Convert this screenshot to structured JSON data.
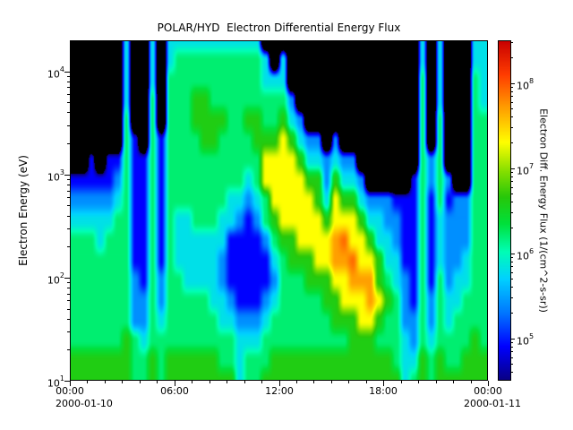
{
  "title": "POLAR/HYD  Electron Differential Energy Flux",
  "chart_data": {
    "type": "heatmap",
    "title": "POLAR/HYD  Electron Differential Energy Flux",
    "ylabel": "Electron Energy (eV)",
    "colorbar_label": "Electron Diff. Energy Flux (1/(cm^2-s-sr))",
    "x_date_left": "2000-01-10",
    "x_date_right": "2000-01-11",
    "x_tick_hours": [
      0,
      6,
      12,
      18,
      24
    ],
    "x_tick_labels": [
      "00:00",
      "06:00",
      "12:00",
      "18:00",
      "00:00"
    ],
    "y_tick_exponents": [
      1,
      2,
      3,
      4
    ],
    "colorbar_tick_exponents": [
      5,
      6,
      7,
      8
    ],
    "x_hours_range": [
      0,
      24
    ],
    "y_log10_energy_range": [
      1.0,
      4.3
    ],
    "flux_log10_color_range": [
      4.5,
      8.5
    ],
    "no_data_below_log10_flux": 4.45,
    "time_bin_hours": 0.5,
    "energy_rows_log10_eV": [
      1.0,
      1.19,
      1.39,
      1.58,
      1.78,
      1.97,
      2.16,
      2.36,
      2.55,
      2.75,
      2.94,
      3.14,
      3.33,
      3.53,
      3.72,
      3.92,
      4.11,
      4.3
    ],
    "columns_log10_flux": [
      [
        6.6,
        6.6,
        6.2,
        6.2,
        6.2,
        6.2,
        6.2,
        6.2,
        5.8,
        5.4,
        4.9,
        3,
        3,
        3,
        3,
        3,
        3,
        3
      ],
      [
        6.6,
        6.6,
        6.2,
        6.2,
        6.2,
        6.2,
        6.2,
        6.2,
        5.8,
        5.4,
        4.9,
        3,
        3,
        3,
        3,
        3,
        3,
        3
      ],
      [
        6.6,
        6.6,
        6.2,
        6.2,
        6.2,
        6.2,
        6.2,
        6.2,
        5.8,
        5.4,
        4.9,
        4.9,
        3,
        3,
        3,
        3,
        3,
        3
      ],
      [
        6.6,
        6.6,
        6.2,
        6.2,
        6.2,
        6.2,
        6.2,
        5.8,
        5.8,
        5.4,
        4.9,
        3,
        3,
        3,
        3,
        3,
        3,
        3
      ],
      [
        6.6,
        6.6,
        6.2,
        6.2,
        6.2,
        6.2,
        6.2,
        6.2,
        5.8,
        5.4,
        4.9,
        4.9,
        3,
        3,
        3,
        3,
        3,
        3
      ],
      [
        6.6,
        6.6,
        6.2,
        6.2,
        6.2,
        6.2,
        6.2,
        6.2,
        6.2,
        5.8,
        5.4,
        4.9,
        3,
        3,
        3,
        3,
        3,
        3
      ],
      [
        6.6,
        6.6,
        6.6,
        6.2,
        6.2,
        6.2,
        6.2,
        6.2,
        6.2,
        6.2,
        6.2,
        6.2,
        6.2,
        6.2,
        5.8,
        5.8,
        5.8,
        5.8
      ],
      [
        6.2,
        6.2,
        6.2,
        5.4,
        5.4,
        5.4,
        4.9,
        4.9,
        4.9,
        4.9,
        4.9,
        4.9,
        4.9,
        3,
        3,
        3,
        3,
        3
      ],
      [
        6.2,
        6.2,
        5.8,
        5.4,
        5.4,
        4.9,
        4.9,
        4.9,
        4.9,
        4.9,
        4.9,
        4.9,
        3,
        3,
        3,
        3,
        3,
        3
      ],
      [
        6.6,
        6.6,
        6.2,
        6.2,
        6.2,
        6.2,
        6.2,
        6.2,
        6.2,
        6.2,
        6.2,
        6.2,
        6.2,
        6.2,
        6.2,
        5.8,
        5.8,
        5.8
      ],
      [
        6.2,
        6.2,
        6.2,
        5.8,
        5.4,
        5.4,
        4.9,
        4.9,
        4.9,
        4.9,
        4.9,
        4.9,
        4.9,
        3,
        3,
        3,
        3,
        3
      ],
      [
        6.6,
        6.6,
        6.2,
        6.2,
        6.2,
        6.2,
        6.2,
        6.2,
        6.2,
        6.2,
        6.2,
        6.2,
        6.2,
        6.2,
        6.2,
        6.2,
        5.8,
        5.8
      ],
      [
        6.6,
        6.6,
        6.2,
        6.2,
        6.2,
        6.2,
        5.8,
        5.8,
        5.8,
        6.2,
        6.2,
        6.2,
        6.2,
        6.2,
        6.2,
        6.2,
        6.2,
        5.8
      ],
      [
        6.6,
        6.6,
        6.2,
        6.2,
        6.2,
        5.8,
        5.8,
        5.8,
        5.8,
        6.2,
        6.2,
        6.2,
        6.2,
        6.2,
        6.2,
        6.2,
        6.2,
        5.8
      ],
      [
        6.6,
        6.6,
        6.2,
        6.2,
        6.2,
        5.8,
        5.8,
        5.8,
        6.2,
        6.2,
        6.2,
        6.2,
        6.2,
        6.6,
        6.6,
        6.2,
        6.2,
        5.8
      ],
      [
        6.6,
        6.6,
        6.2,
        6.2,
        6.2,
        5.8,
        5.8,
        5.8,
        6.2,
        6.2,
        6.2,
        6.2,
        6.6,
        6.6,
        6.6,
        6.2,
        6.2,
        5.8
      ],
      [
        6.6,
        6.6,
        6.2,
        6.2,
        5.8,
        5.8,
        5.8,
        5.8,
        6.2,
        6.2,
        6.2,
        6.2,
        6.6,
        6.6,
        6.2,
        6.2,
        6.2,
        5.8
      ],
      [
        6.6,
        6.2,
        6.2,
        5.8,
        5.8,
        5.4,
        5.4,
        5.8,
        5.8,
        6.2,
        6.2,
        6.2,
        6.2,
        6.6,
        6.2,
        6.2,
        6.2,
        5.8
      ],
      [
        6.6,
        6.2,
        6.2,
        5.8,
        5.4,
        4.9,
        4.9,
        4.9,
        5.8,
        5.8,
        6.2,
        6.2,
        6.2,
        6.2,
        6.2,
        6.2,
        6.2,
        5.8
      ],
      [
        5.8,
        5.8,
        5.8,
        5.4,
        4.9,
        4.9,
        4.9,
        4.9,
        5.4,
        5.8,
        6.2,
        6.2,
        6.2,
        6.2,
        6.2,
        6.2,
        6.2,
        5.8
      ],
      [
        6.2,
        6.2,
        5.8,
        5.4,
        4.9,
        4.9,
        4.9,
        4.9,
        4.9,
        5.4,
        5.8,
        6.2,
        6.2,
        6.6,
        6.2,
        6.2,
        6.2,
        5.8
      ],
      [
        6.2,
        6.2,
        5.8,
        5.4,
        4.9,
        4.9,
        4.9,
        4.9,
        5.4,
        5.8,
        6.2,
        6.2,
        6.6,
        6.6,
        6.2,
        6.2,
        6.2,
        5.8
      ],
      [
        6.6,
        6.2,
        6.2,
        5.8,
        5.4,
        4.9,
        4.9,
        5.4,
        6.2,
        6.2,
        7.3,
        7.3,
        6.6,
        6.2,
        6.2,
        5.8,
        5.8,
        3
      ],
      [
        6.6,
        6.6,
        6.2,
        6.2,
        5.8,
        5.4,
        5.8,
        6.2,
        6.6,
        7.3,
        7.3,
        7.3,
        6.6,
        6.2,
        6.2,
        5.8,
        3,
        3
      ],
      [
        6.6,
        6.6,
        6.2,
        6.2,
        6.2,
        6.2,
        6.2,
        6.6,
        7.3,
        7.3,
        7.3,
        7.3,
        7.3,
        6.6,
        6.2,
        5.8,
        5.8,
        3
      ],
      [
        6.6,
        6.6,
        6.2,
        6.2,
        6.2,
        6.2,
        6.6,
        6.6,
        7.3,
        7.3,
        7.3,
        7.3,
        6.6,
        5.8,
        5.4,
        3,
        3,
        3
      ],
      [
        6.6,
        6.6,
        6.2,
        6.2,
        6.2,
        6.2,
        6.6,
        7.3,
        7.3,
        7.3,
        7.3,
        6.6,
        5.8,
        5.4,
        3,
        3,
        3,
        3
      ],
      [
        6.6,
        6.6,
        6.2,
        6.2,
        6.2,
        6.6,
        6.6,
        7.3,
        7.3,
        7.3,
        6.6,
        5.8,
        5.4,
        3,
        3,
        3,
        3,
        3
      ],
      [
        6.6,
        6.6,
        6.2,
        6.2,
        6.2,
        6.6,
        7.3,
        7.3,
        7.3,
        6.6,
        6.6,
        5.8,
        5.4,
        3,
        3,
        3,
        3,
        3
      ],
      [
        6.6,
        6.6,
        6.2,
        6.2,
        6.6,
        6.6,
        7.3,
        7.3,
        6.6,
        5.8,
        5.4,
        5.4,
        3,
        3,
        3,
        3,
        3,
        3
      ],
      [
        6.6,
        6.6,
        6.2,
        6.6,
        6.6,
        7.3,
        7.7,
        7.7,
        7.3,
        7.3,
        6.6,
        5.8,
        5.4,
        3,
        3,
        3,
        3,
        3
      ],
      [
        6.6,
        6.6,
        6.2,
        6.6,
        7.3,
        7.3,
        7.7,
        7.9,
        7.3,
        6.6,
        5.8,
        5.4,
        3,
        3,
        3,
        3,
        3,
        3
      ],
      [
        6.6,
        6.6,
        6.6,
        6.6,
        7.3,
        7.7,
        7.9,
        7.3,
        7.3,
        6.6,
        5.8,
        5.4,
        3,
        3,
        3,
        3,
        3,
        3
      ],
      [
        6.6,
        6.6,
        6.6,
        7.3,
        7.3,
        7.7,
        7.3,
        7.3,
        6.6,
        5.8,
        5.4,
        3,
        3,
        3,
        3,
        3,
        3,
        3
      ],
      [
        6.6,
        6.6,
        6.6,
        7.3,
        7.7,
        7.7,
        7.3,
        6.6,
        5.8,
        5.4,
        3,
        3,
        3,
        3,
        3,
        3,
        3,
        3
      ],
      [
        6.6,
        6.6,
        6.2,
        6.6,
        7.3,
        6.6,
        6.6,
        5.8,
        5.8,
        5.4,
        3,
        3,
        3,
        3,
        3,
        3,
        3,
        3
      ],
      [
        6.6,
        6.6,
        6.2,
        6.2,
        6.6,
        6.2,
        5.8,
        5.8,
        5.4,
        5.4,
        3,
        3,
        3,
        3,
        3,
        3,
        3,
        3
      ],
      [
        6.6,
        6.2,
        6.2,
        6.2,
        6.2,
        5.8,
        5.8,
        5.4,
        5.4,
        4.9,
        3,
        3,
        3,
        3,
        3,
        3,
        3,
        3
      ],
      [
        5.8,
        5.8,
        5.8,
        5.4,
        5.4,
        5.4,
        4.9,
        4.9,
        4.9,
        4.9,
        3,
        3,
        3,
        3,
        3,
        3,
        3,
        3
      ],
      [
        6.2,
        5.8,
        5.4,
        5.4,
        4.9,
        4.9,
        4.9,
        4.9,
        4.9,
        4.9,
        4.9,
        3,
        3,
        3,
        3,
        3,
        3,
        3
      ],
      [
        6.6,
        6.6,
        6.2,
        6.2,
        6.2,
        6.2,
        6.2,
        6.2,
        6.2,
        6.2,
        6.2,
        6.2,
        6.2,
        6.2,
        6.2,
        6.2,
        5.8,
        5.8
      ],
      [
        6.2,
        6.2,
        5.8,
        5.4,
        5.4,
        4.9,
        4.9,
        4.9,
        4.9,
        4.9,
        5.4,
        5.4,
        3,
        3,
        3,
        3,
        3,
        3
      ],
      [
        6.6,
        6.6,
        6.2,
        6.2,
        6.2,
        6.2,
        5.8,
        5.8,
        5.8,
        6.2,
        6.2,
        6.2,
        6.2,
        6.2,
        5.8,
        5.8,
        5.8,
        5.8
      ],
      [
        6.6,
        6.2,
        6.2,
        5.8,
        5.8,
        5.4,
        5.4,
        5.4,
        5.4,
        4.9,
        5.4,
        3,
        3,
        3,
        3,
        3,
        3,
        3
      ],
      [
        6.6,
        6.2,
        6.2,
        6.2,
        5.8,
        5.8,
        5.4,
        5.4,
        5.4,
        5.4,
        3,
        3,
        3,
        3,
        3,
        3,
        3,
        3
      ],
      [
        6.6,
        6.6,
        6.2,
        6.2,
        6.2,
        5.8,
        5.8,
        5.4,
        5.4,
        5.4,
        3,
        3,
        3,
        3,
        3,
        3,
        3,
        3
      ],
      [
        6.6,
        6.6,
        6.6,
        6.2,
        6.2,
        6.2,
        6.2,
        6.2,
        6.2,
        6.2,
        6.2,
        6.2,
        6.2,
        6.2,
        6.2,
        6.2,
        5.8,
        5.8
      ],
      [
        6.6,
        6.6,
        6.2,
        6.2,
        6.2,
        6.2,
        6.2,
        6.2,
        6.2,
        6.2,
        6.2,
        6.2,
        6.2,
        6.2,
        5.8,
        5.8,
        5.8,
        5.8
      ]
    ],
    "colormap_stops": [
      [
        0.0,
        10,
        0,
        130
      ],
      [
        0.1,
        0,
        0,
        255
      ],
      [
        0.2,
        0,
        120,
        255
      ],
      [
        0.3,
        0,
        210,
        255
      ],
      [
        0.38,
        0,
        255,
        180
      ],
      [
        0.46,
        0,
        225,
        60
      ],
      [
        0.54,
        40,
        200,
        10
      ],
      [
        0.62,
        140,
        225,
        0
      ],
      [
        0.7,
        255,
        255,
        0
      ],
      [
        0.8,
        255,
        160,
        0
      ],
      [
        0.9,
        255,
        60,
        0
      ],
      [
        1.0,
        200,
        0,
        0
      ]
    ]
  }
}
